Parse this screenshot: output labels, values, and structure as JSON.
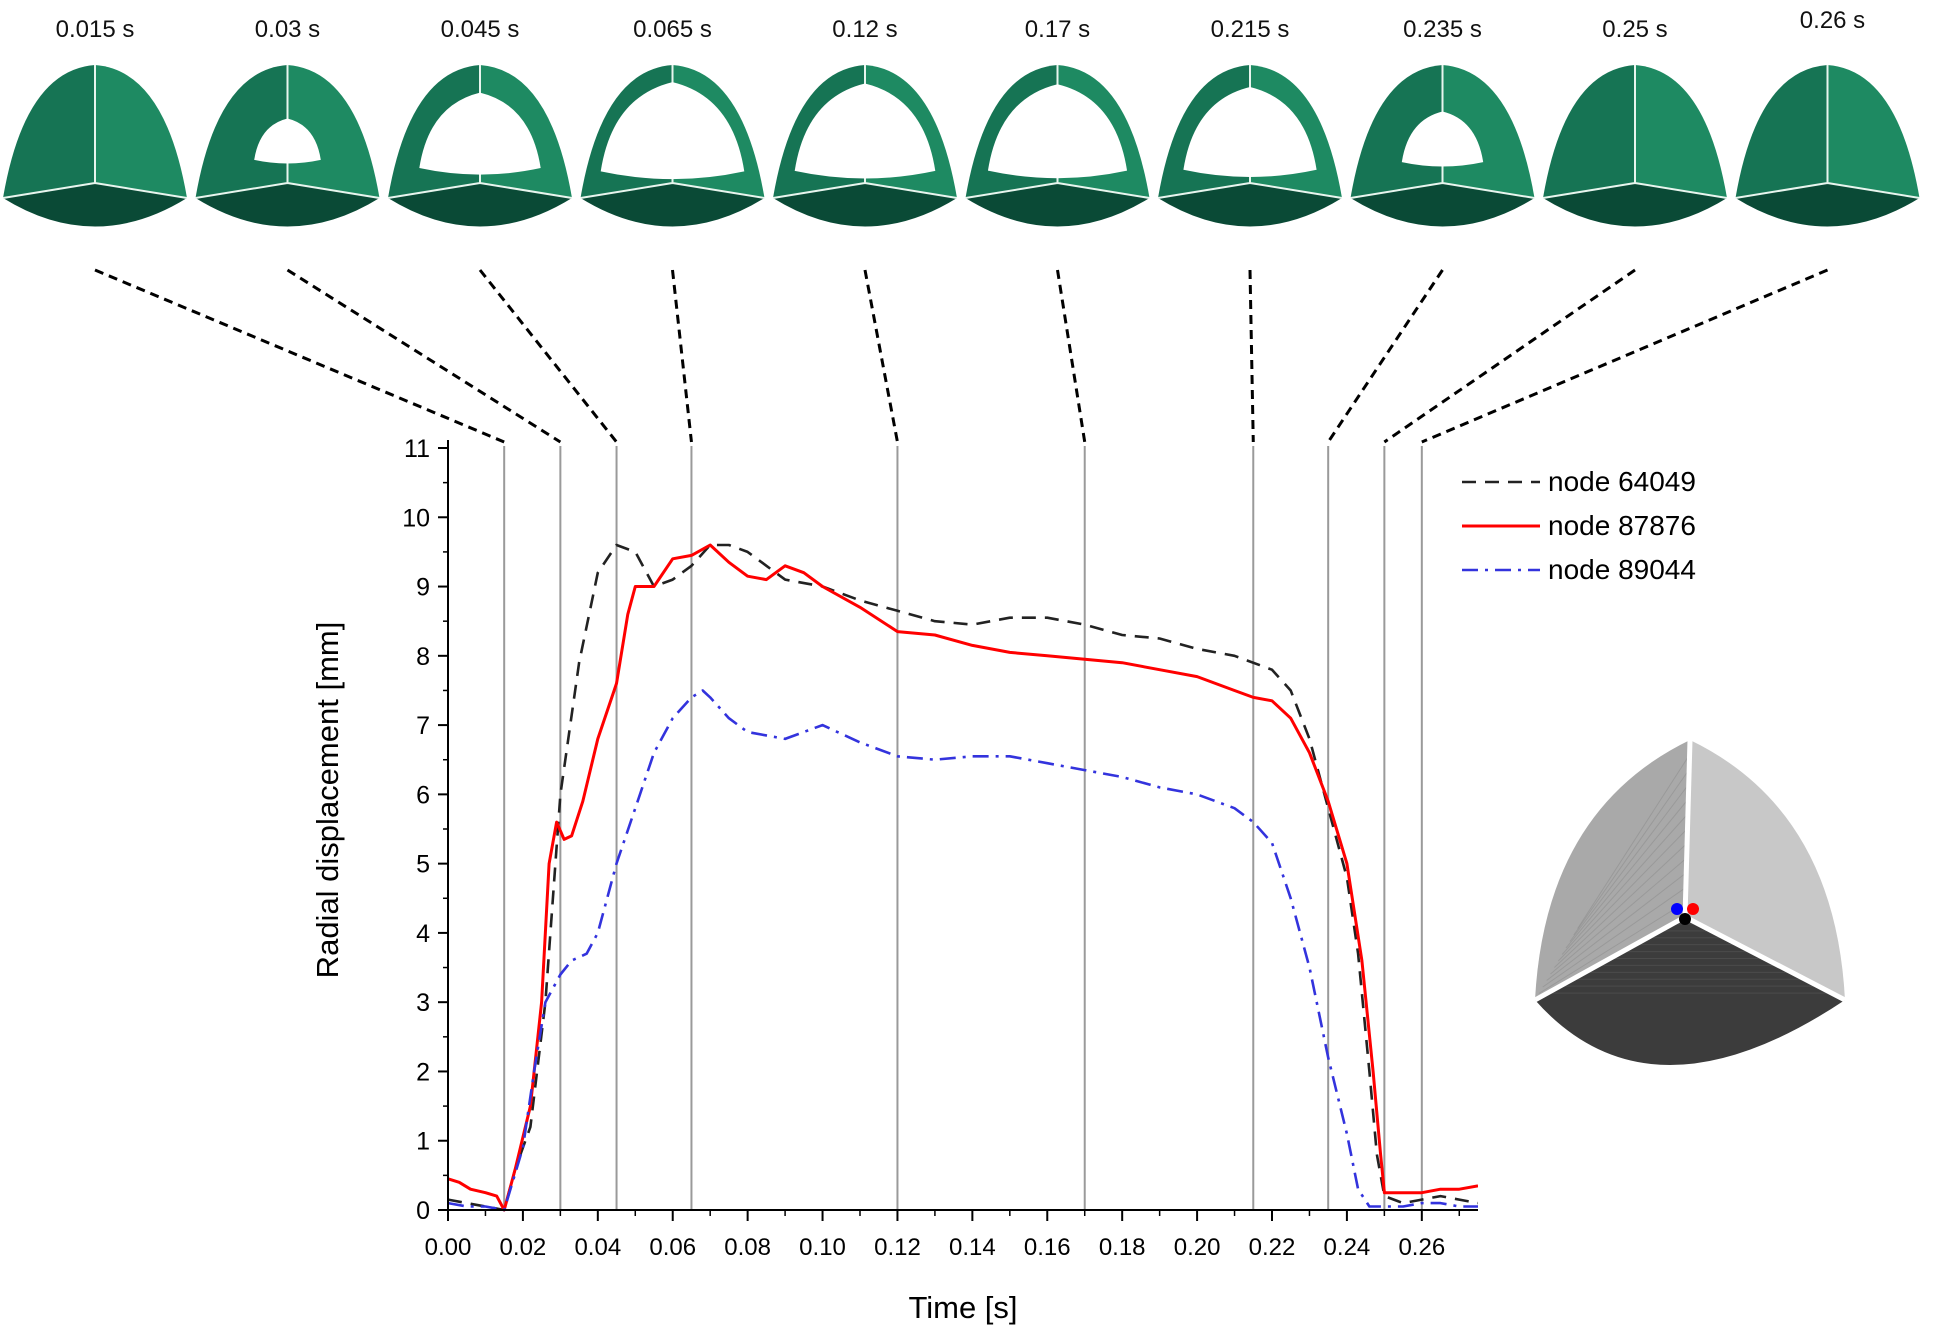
{
  "colors": {
    "leaflet_light": "#1e8a62",
    "leaflet_mid": "#167454",
    "leaflet_dark": "#0a4a36",
    "mesh_light": "#c8c8c8",
    "mesh_dark": "#3c3c3c",
    "guide": "#9a9a9a",
    "connector": "#000000"
  },
  "snapshots": [
    {
      "label": "0.015 s",
      "t": 0.015,
      "opening": 0.0
    },
    {
      "label": "0.03 s",
      "t": 0.03,
      "opening": 0.45
    },
    {
      "label": "0.045 s",
      "t": 0.045,
      "opening": 0.82
    },
    {
      "label": "0.065 s",
      "t": 0.065,
      "opening": 0.97
    },
    {
      "label": "0.12 s",
      "t": 0.12,
      "opening": 0.95
    },
    {
      "label": "0.17 s",
      "t": 0.17,
      "opening": 0.94
    },
    {
      "label": "0.215 s",
      "t": 0.215,
      "opening": 0.9
    },
    {
      "label": "0.235 s",
      "t": 0.235,
      "opening": 0.55
    },
    {
      "label": "0.25 s",
      "t": 0.25,
      "opening": 0.0
    },
    {
      "label": "0.26 s",
      "t": 0.26,
      "opening": 0.0
    }
  ],
  "inset": {
    "node_markers": [
      "#0000ff",
      "#ff0000",
      "#000000"
    ]
  },
  "chart_data": {
    "type": "line",
    "xlabel": "Time [s]",
    "ylabel": "Radial displacement [mm]",
    "xlim": [
      0,
      0.275
    ],
    "ylim": [
      0,
      11
    ],
    "xticks": [
      "0.00",
      "0.02",
      "0.04",
      "0.06",
      "0.08",
      "0.10",
      "0.12",
      "0.14",
      "0.16",
      "0.18",
      "0.20",
      "0.22",
      "0.24",
      "0.26"
    ],
    "yticks": [
      "0",
      "1",
      "2",
      "3",
      "4",
      "5",
      "6",
      "7",
      "8",
      "9",
      "10",
      "11"
    ],
    "reference_lines_x": [
      0.015,
      0.03,
      0.045,
      0.065,
      0.12,
      0.17,
      0.215,
      0.235,
      0.25,
      0.26
    ],
    "legend_position": "top-right",
    "grid": false,
    "series": [
      {
        "name": "node 64049",
        "color": "#222222",
        "style": "dashed",
        "points": [
          [
            0,
            0.15
          ],
          [
            0.005,
            0.1
          ],
          [
            0.01,
            0.05
          ],
          [
            0.015,
            0.0
          ],
          [
            0.018,
            0.6
          ],
          [
            0.022,
            1.2
          ],
          [
            0.026,
            3.0
          ],
          [
            0.03,
            6.0
          ],
          [
            0.035,
            7.9
          ],
          [
            0.04,
            9.2
          ],
          [
            0.045,
            9.6
          ],
          [
            0.05,
            9.5
          ],
          [
            0.055,
            9.0
          ],
          [
            0.06,
            9.1
          ],
          [
            0.065,
            9.3
          ],
          [
            0.07,
            9.6
          ],
          [
            0.075,
            9.6
          ],
          [
            0.08,
            9.5
          ],
          [
            0.085,
            9.3
          ],
          [
            0.09,
            9.1
          ],
          [
            0.1,
            9.0
          ],
          [
            0.11,
            8.8
          ],
          [
            0.12,
            8.65
          ],
          [
            0.13,
            8.5
          ],
          [
            0.14,
            8.45
          ],
          [
            0.15,
            8.55
          ],
          [
            0.16,
            8.55
          ],
          [
            0.17,
            8.45
          ],
          [
            0.18,
            8.3
          ],
          [
            0.19,
            8.25
          ],
          [
            0.2,
            8.1
          ],
          [
            0.21,
            8.0
          ],
          [
            0.22,
            7.8
          ],
          [
            0.225,
            7.5
          ],
          [
            0.23,
            6.8
          ],
          [
            0.235,
            5.8
          ],
          [
            0.24,
            4.8
          ],
          [
            0.243,
            3.7
          ],
          [
            0.246,
            2.0
          ],
          [
            0.248,
            0.8
          ],
          [
            0.25,
            0.2
          ],
          [
            0.255,
            0.1
          ],
          [
            0.26,
            0.15
          ],
          [
            0.265,
            0.2
          ],
          [
            0.27,
            0.15
          ],
          [
            0.275,
            0.1
          ]
        ]
      },
      {
        "name": "node 87876",
        "color": "#ff0000",
        "style": "solid",
        "points": [
          [
            0,
            0.45
          ],
          [
            0.003,
            0.4
          ],
          [
            0.006,
            0.3
          ],
          [
            0.01,
            0.25
          ],
          [
            0.013,
            0.2
          ],
          [
            0.015,
            0.0
          ],
          [
            0.018,
            0.6
          ],
          [
            0.022,
            1.5
          ],
          [
            0.025,
            3.0
          ],
          [
            0.027,
            5.0
          ],
          [
            0.029,
            5.6
          ],
          [
            0.031,
            5.35
          ],
          [
            0.033,
            5.4
          ],
          [
            0.036,
            5.9
          ],
          [
            0.04,
            6.8
          ],
          [
            0.045,
            7.6
          ],
          [
            0.048,
            8.6
          ],
          [
            0.05,
            9.0
          ],
          [
            0.055,
            9.0
          ],
          [
            0.06,
            9.4
          ],
          [
            0.065,
            9.45
          ],
          [
            0.07,
            9.6
          ],
          [
            0.075,
            9.35
          ],
          [
            0.08,
            9.15
          ],
          [
            0.085,
            9.1
          ],
          [
            0.09,
            9.3
          ],
          [
            0.095,
            9.2
          ],
          [
            0.1,
            9.0
          ],
          [
            0.11,
            8.7
          ],
          [
            0.12,
            8.35
          ],
          [
            0.13,
            8.3
          ],
          [
            0.14,
            8.15
          ],
          [
            0.15,
            8.05
          ],
          [
            0.16,
            8.0
          ],
          [
            0.17,
            7.95
          ],
          [
            0.18,
            7.9
          ],
          [
            0.19,
            7.8
          ],
          [
            0.2,
            7.7
          ],
          [
            0.21,
            7.5
          ],
          [
            0.215,
            7.4
          ],
          [
            0.22,
            7.35
          ],
          [
            0.225,
            7.1
          ],
          [
            0.23,
            6.6
          ],
          [
            0.235,
            5.9
          ],
          [
            0.24,
            5.0
          ],
          [
            0.244,
            3.6
          ],
          [
            0.247,
            2.0
          ],
          [
            0.249,
            0.8
          ],
          [
            0.25,
            0.25
          ],
          [
            0.255,
            0.25
          ],
          [
            0.26,
            0.25
          ],
          [
            0.265,
            0.3
          ],
          [
            0.27,
            0.3
          ],
          [
            0.275,
            0.35
          ]
        ]
      },
      {
        "name": "node 89044",
        "color": "#3333dd",
        "style": "dashdot",
        "points": [
          [
            0,
            0.1
          ],
          [
            0.005,
            0.05
          ],
          [
            0.01,
            0.05
          ],
          [
            0.015,
            0.0
          ],
          [
            0.02,
            0.9
          ],
          [
            0.023,
            2.0
          ],
          [
            0.026,
            3.0
          ],
          [
            0.03,
            3.4
          ],
          [
            0.033,
            3.6
          ],
          [
            0.037,
            3.7
          ],
          [
            0.04,
            4.0
          ],
          [
            0.045,
            5.0
          ],
          [
            0.05,
            5.8
          ],
          [
            0.055,
            6.6
          ],
          [
            0.06,
            7.1
          ],
          [
            0.065,
            7.4
          ],
          [
            0.068,
            7.5
          ],
          [
            0.07,
            7.4
          ],
          [
            0.075,
            7.1
          ],
          [
            0.08,
            6.9
          ],
          [
            0.09,
            6.8
          ],
          [
            0.1,
            7.0
          ],
          [
            0.11,
            6.75
          ],
          [
            0.12,
            6.55
          ],
          [
            0.13,
            6.5
          ],
          [
            0.14,
            6.55
          ],
          [
            0.15,
            6.55
          ],
          [
            0.16,
            6.45
          ],
          [
            0.17,
            6.35
          ],
          [
            0.18,
            6.25
          ],
          [
            0.19,
            6.1
          ],
          [
            0.2,
            6.0
          ],
          [
            0.21,
            5.8
          ],
          [
            0.215,
            5.6
          ],
          [
            0.22,
            5.3
          ],
          [
            0.225,
            4.5
          ],
          [
            0.23,
            3.5
          ],
          [
            0.235,
            2.2
          ],
          [
            0.24,
            1.1
          ],
          [
            0.243,
            0.3
          ],
          [
            0.246,
            0.05
          ],
          [
            0.25,
            0.05
          ],
          [
            0.255,
            0.05
          ],
          [
            0.26,
            0.1
          ],
          [
            0.265,
            0.1
          ],
          [
            0.27,
            0.05
          ],
          [
            0.275,
            0.05
          ]
        ]
      }
    ]
  }
}
